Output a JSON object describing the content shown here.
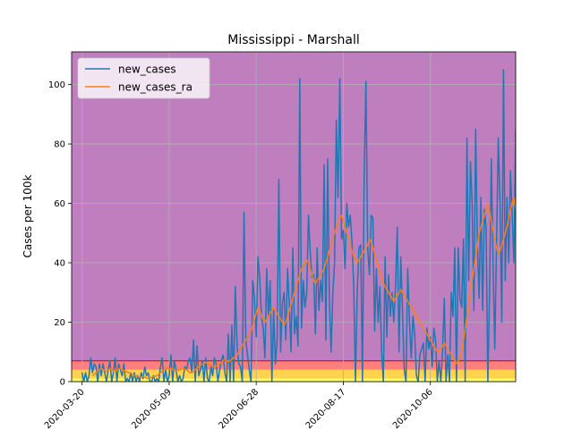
{
  "chart_data": {
    "type": "line",
    "title": "Mississippi - Marshall",
    "xlabel": "",
    "ylabel": "Cases per 100k",
    "x_range": [
      "2020-03-14",
      "2020-11-24"
    ],
    "ylim": [
      0,
      111
    ],
    "y_ticks": [
      0,
      20,
      40,
      60,
      80,
      100
    ],
    "x_ticks": [
      "2020-03-20",
      "2020-05-09",
      "2020-06-28",
      "2020-08-17",
      "2020-10-06"
    ],
    "grid": true,
    "legend_position": "top-left",
    "bands": [
      {
        "from": 0,
        "to": 1,
        "color": "#ffff66"
      },
      {
        "from": 1,
        "to": 4,
        "color": "#ffd34d"
      },
      {
        "from": 4,
        "to": 7,
        "color": "#ff7f7f"
      },
      {
        "from": 7,
        "to": 111,
        "color": "#bf7fbf"
      }
    ],
    "threshold_line": {
      "value": 7,
      "color": "#cc0000"
    },
    "series": [
      {
        "name": "new_cases",
        "color": "#1f77b4",
        "start": "2020-03-20",
        "values": [
          3,
          0,
          3,
          0,
          2,
          8,
          3,
          6,
          5,
          0,
          6,
          2,
          6,
          3,
          0,
          4,
          7,
          0,
          3,
          8,
          0,
          6,
          4,
          2,
          6,
          0,
          1,
          0,
          3,
          0,
          3,
          0,
          2,
          0,
          3,
          1,
          5,
          2,
          3,
          0,
          0,
          2,
          0,
          1,
          0,
          5,
          8,
          0,
          4,
          0,
          2,
          9,
          0,
          7,
          4,
          0,
          2,
          0,
          1,
          5,
          4,
          7,
          8,
          3,
          14,
          0,
          12,
          2,
          4,
          7,
          0,
          8,
          1,
          0,
          5,
          2,
          8,
          6,
          0,
          4,
          7,
          9,
          3,
          0,
          16,
          0,
          19,
          0,
          32,
          12,
          6,
          5,
          0,
          57,
          14,
          9,
          4,
          0,
          34,
          28,
          15,
          42,
          35,
          22,
          18,
          8,
          38,
          22,
          34,
          0,
          24,
          6,
          14,
          68,
          10,
          26,
          30,
          14,
          38,
          26,
          10,
          45,
          16,
          22,
          12,
          102,
          18,
          34,
          25,
          30,
          56,
          44,
          35,
          36,
          16,
          45,
          24,
          34,
          27,
          73,
          14,
          75,
          28,
          10,
          30,
          40,
          88,
          62,
          102,
          48,
          51,
          38,
          60,
          52,
          56,
          47,
          32,
          0,
          30,
          45,
          46,
          0,
          70,
          101,
          45,
          36,
          56,
          55,
          17,
          38,
          20,
          32,
          10,
          0,
          42,
          15,
          36,
          22,
          30,
          20,
          32,
          52,
          10,
          42,
          24,
          4,
          0,
          38,
          20,
          8,
          22,
          16,
          2,
          0,
          9,
          11,
          13,
          0,
          18,
          11,
          15,
          5,
          18,
          14,
          0,
          7,
          0,
          10,
          28,
          0,
          9,
          0,
          30,
          22,
          45,
          0,
          45,
          28,
          25,
          48,
          0,
          82,
          34,
          74,
          60,
          24,
          85,
          46,
          28,
          62,
          24,
          58,
          52,
          0,
          30,
          75,
          40,
          11,
          46,
          82,
          60,
          20,
          105,
          34,
          62,
          40,
          71,
          56,
          40,
          85
        ]
      },
      {
        "name": "new_cases_ra",
        "color": "#ff7f0e",
        "start": "2020-03-26",
        "values": [
          2,
          2.5,
          3,
          3.5,
          4,
          4.5,
          4,
          3.8,
          3.5,
          4,
          4.2,
          4,
          3.5,
          4,
          3.8,
          4.2,
          4.5,
          4,
          3.8,
          3.5,
          3.2,
          3,
          2.8,
          2.5,
          2.2,
          2,
          1.8,
          1.5,
          1.5,
          1.8,
          1.5,
          1.2,
          1,
          1.2,
          1.5,
          1.5,
          1.8,
          2,
          2.5,
          3,
          3.5,
          4,
          4.2,
          4.5,
          4,
          4.5,
          4.2,
          3.8,
          3.5,
          3.8,
          4,
          4.2,
          4.5,
          4.2,
          4,
          3.5,
          3,
          3.2,
          3.5,
          4,
          4.5,
          5,
          5.5,
          5.8,
          6,
          6.5,
          6.2,
          5.8,
          5.5,
          5.2,
          5,
          5.2,
          5.5,
          6,
          6.5,
          7,
          7.5,
          7,
          6.8,
          7,
          7.5,
          8,
          8.5,
          9,
          10,
          11,
          12,
          13,
          14,
          15,
          16,
          17,
          19,
          21,
          23,
          25,
          24,
          22,
          21,
          20,
          21,
          22,
          23,
          24,
          25,
          24,
          23,
          22,
          21,
          20,
          19,
          20,
          22,
          24,
          26,
          28,
          30,
          32,
          34,
          36,
          38,
          39,
          40,
          41,
          40,
          38,
          36,
          34,
          33,
          34,
          35,
          36,
          37,
          38,
          40,
          42,
          44,
          46,
          48,
          50,
          52,
          54,
          55,
          56,
          54,
          52,
          50,
          48,
          46,
          44,
          42,
          41,
          40,
          41,
          42,
          43,
          44,
          45,
          46,
          48,
          47,
          45,
          43,
          41,
          39,
          37,
          35,
          33,
          32,
          31,
          30,
          29,
          28,
          27,
          28,
          29,
          30,
          31,
          30,
          29,
          28,
          27,
          26,
          25,
          24,
          23,
          22,
          21,
          20,
          19,
          18,
          17,
          16,
          15,
          14,
          13,
          12,
          11,
          10,
          10,
          11,
          12,
          13,
          12,
          11,
          10,
          9,
          8,
          7,
          6,
          7,
          8,
          10,
          14,
          18,
          22,
          26,
          30,
          34,
          38,
          42,
          46,
          50,
          52,
          54,
          56,
          58,
          60,
          57,
          54,
          51,
          48,
          45,
          43,
          44,
          46,
          48,
          50,
          52,
          55,
          58,
          60,
          62,
          58,
          56,
          54,
          56,
          58,
          60,
          62,
          58,
          64
        ]
      }
    ]
  }
}
